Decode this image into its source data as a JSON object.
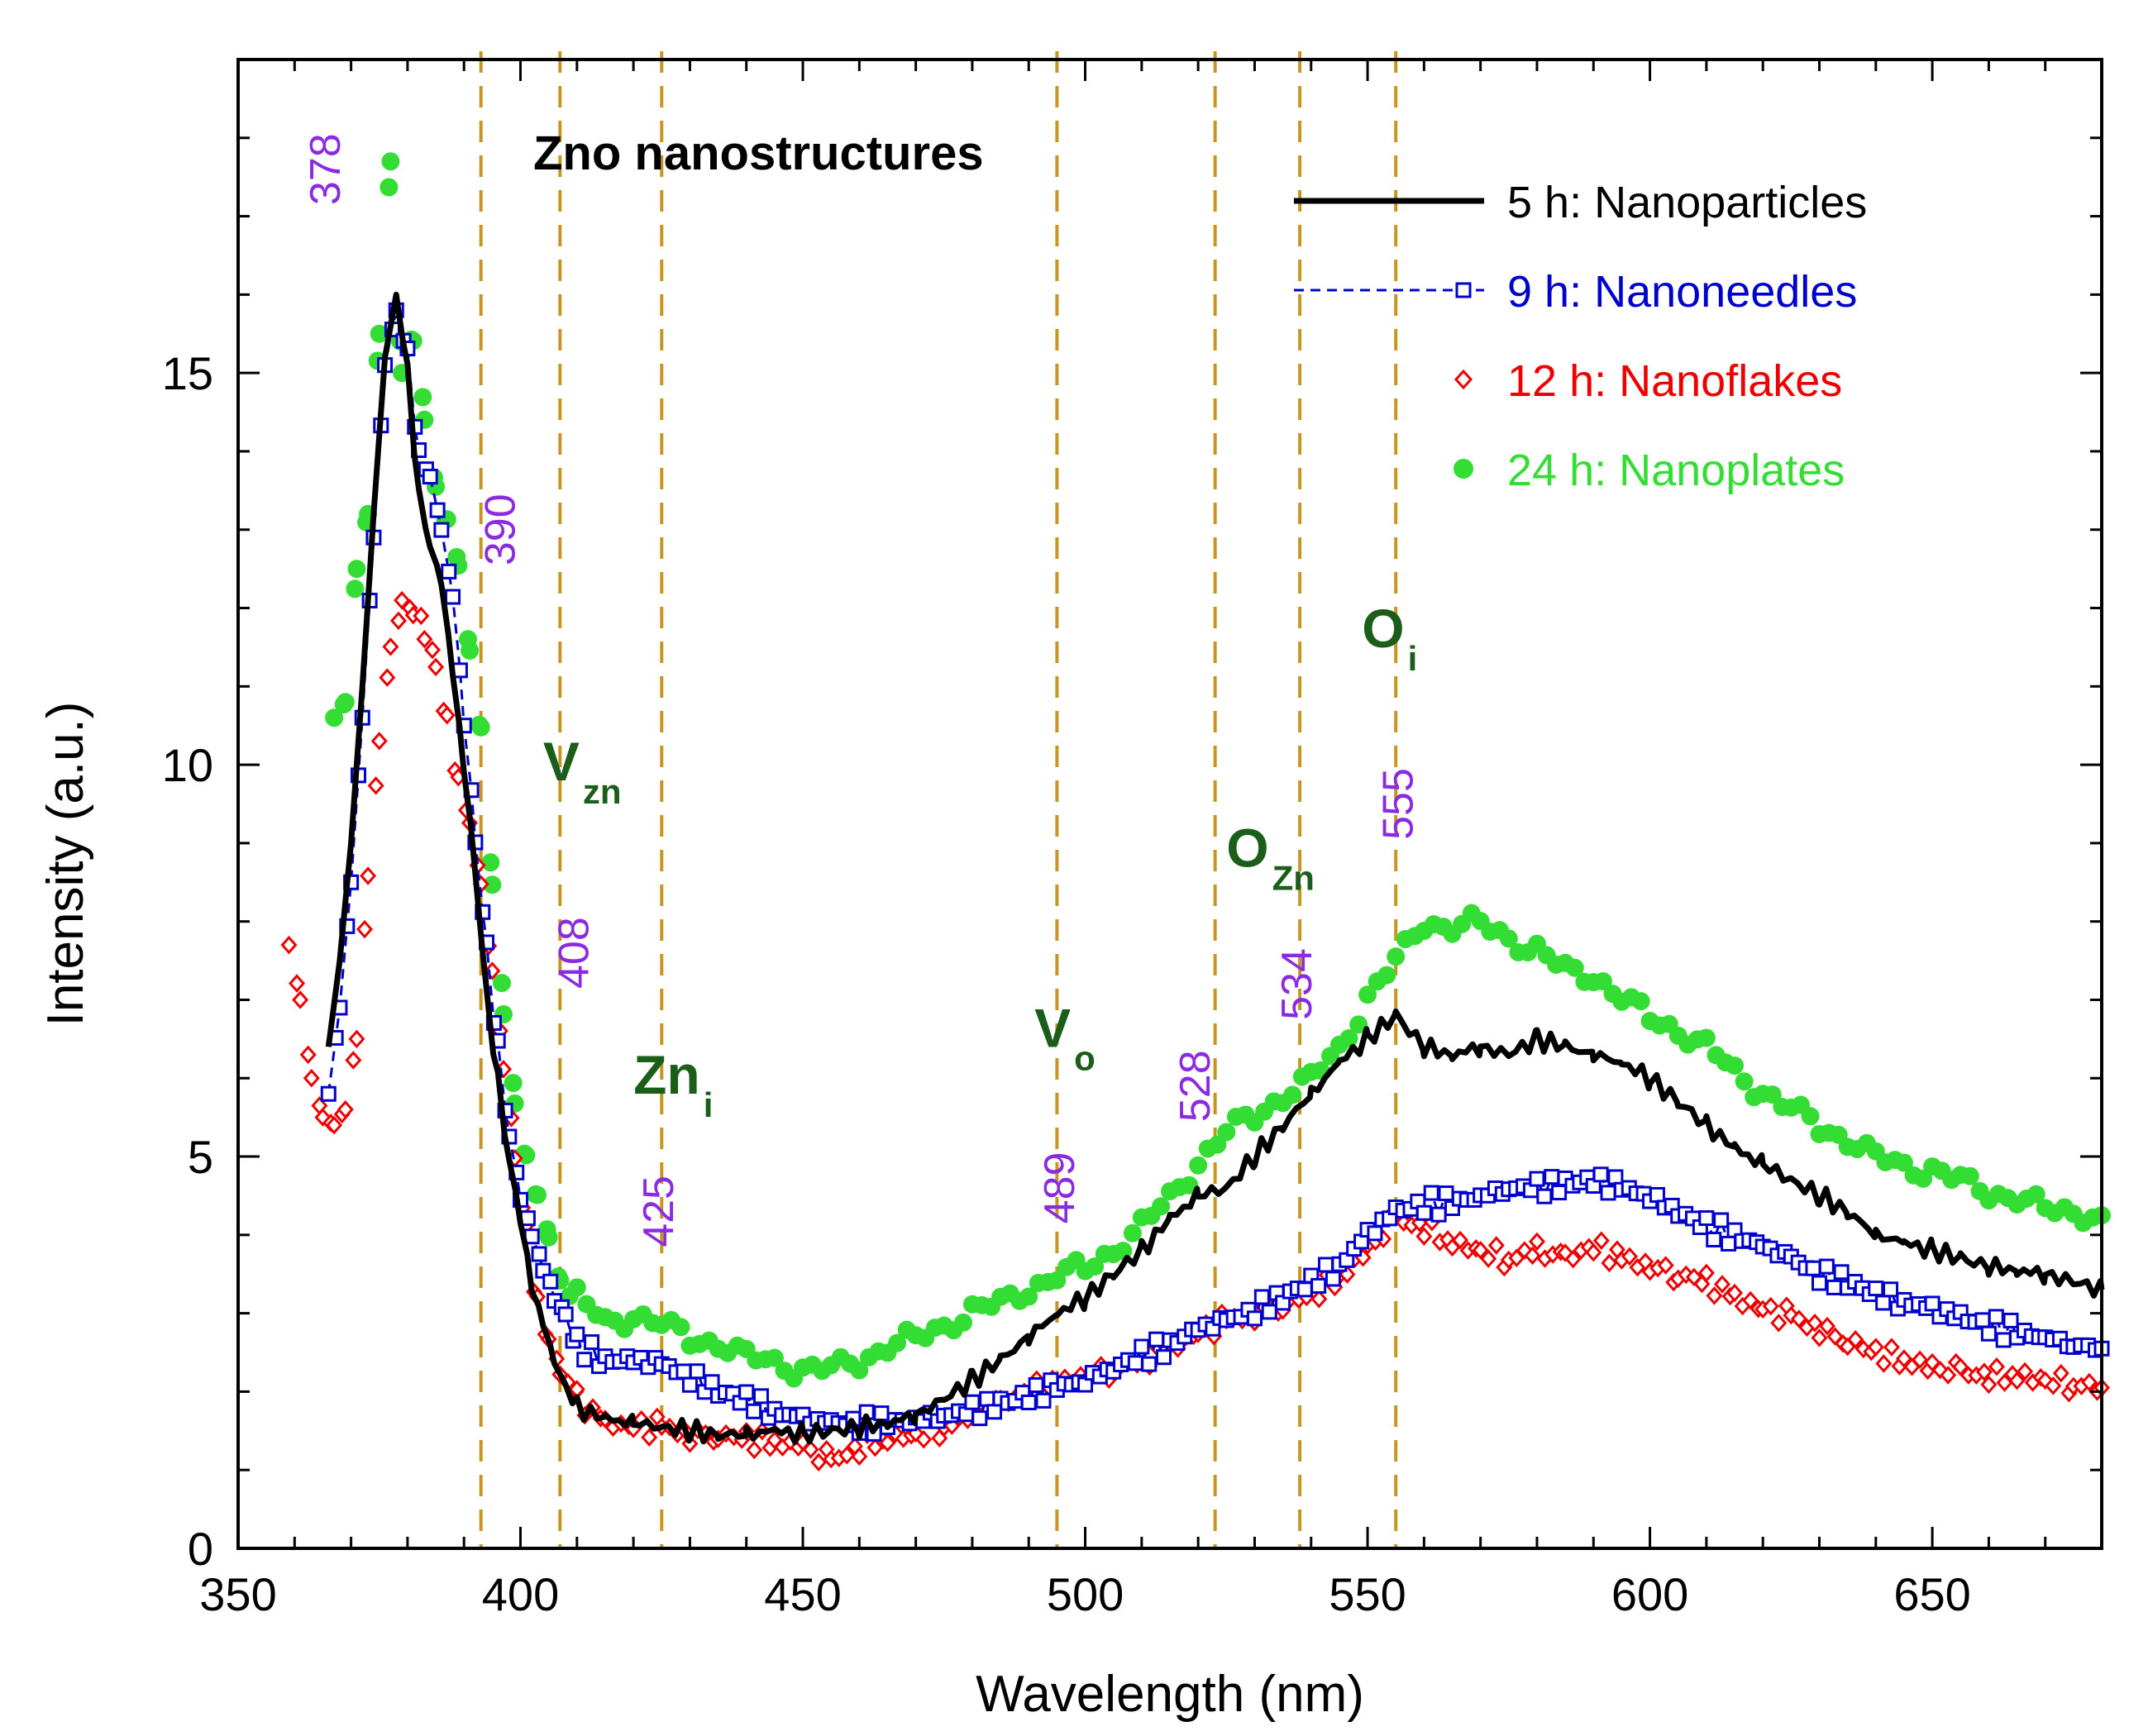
{
  "chart_data": {
    "type": "line",
    "title": "Zno nanostructures",
    "xlabel": "Wavelength (nm)",
    "ylabel": "Intensity (a.u.)",
    "xlim": [
      350,
      680
    ],
    "ylim": [
      0,
      19
    ],
    "xticks": [
      350,
      400,
      450,
      500,
      550,
      600,
      650
    ],
    "xtick_labels": [
      "350",
      "400",
      "450",
      "500",
      "550",
      "600",
      "650"
    ],
    "yticks": [
      0,
      5,
      10,
      15
    ],
    "ytick_labels": [
      "0",
      "5",
      "10",
      "15"
    ],
    "legend_position": "top-right",
    "series": [
      {
        "name": "5 h: Nanoparticles",
        "color": "#000000",
        "style": "line",
        "x": [
          366,
          368,
          370,
          372,
          374,
          376,
          378,
          380,
          382,
          384,
          386,
          388,
          390,
          392,
          394,
          396,
          398,
          400,
          402,
          404,
          406,
          408,
          410,
          415,
          420,
          425,
          430,
          435,
          440,
          445,
          450,
          455,
          460,
          465,
          470,
          475,
          480,
          485,
          490,
          495,
          500,
          505,
          510,
          515,
          520,
          525,
          530,
          535,
          540,
          545,
          550,
          555,
          560,
          565,
          570,
          575,
          580,
          585,
          590,
          595,
          600,
          605,
          610,
          615,
          620,
          625,
          630,
          635,
          640,
          645,
          650,
          655,
          660,
          665,
          670,
          675,
          680
        ],
        "y": [
          6.4,
          7.5,
          9.0,
          11.0,
          13.2,
          15.2,
          16.0,
          15.0,
          13.5,
          12.8,
          12.3,
          11.2,
          10.0,
          8.6,
          7.0,
          6.0,
          5.0,
          4.2,
          3.3,
          2.9,
          2.4,
          2.0,
          1.8,
          1.65,
          1.6,
          1.55,
          1.5,
          1.45,
          1.45,
          1.5,
          1.45,
          1.5,
          1.55,
          1.6,
          1.7,
          1.9,
          2.15,
          2.4,
          2.7,
          3.0,
          3.2,
          3.5,
          3.8,
          4.2,
          4.5,
          4.6,
          5.0,
          5.4,
          5.8,
          6.2,
          6.5,
          6.8,
          6.4,
          6.3,
          6.4,
          6.3,
          6.5,
          6.4,
          6.3,
          6.2,
          6.0,
          5.7,
          5.4,
          5.1,
          4.9,
          4.7,
          4.5,
          4.3,
          4.0,
          3.9,
          3.8,
          3.7,
          3.6,
          3.55,
          3.5,
          3.4,
          3.3
        ]
      },
      {
        "name": "9 h: Nanoneedles",
        "color": "#0000cc",
        "style": "dashed-square",
        "x": [
          366,
          368,
          370,
          372,
          374,
          376,
          378,
          380,
          382,
          384,
          386,
          388,
          390,
          392,
          394,
          396,
          398,
          400,
          402,
          404,
          406,
          408,
          410,
          415,
          420,
          425,
          430,
          435,
          440,
          445,
          450,
          455,
          460,
          465,
          470,
          475,
          480,
          485,
          490,
          495,
          500,
          505,
          510,
          515,
          520,
          525,
          530,
          535,
          540,
          545,
          550,
          555,
          560,
          565,
          570,
          575,
          580,
          585,
          590,
          595,
          600,
          605,
          610,
          615,
          620,
          625,
          630,
          635,
          640,
          645,
          650,
          655,
          660,
          665,
          670,
          675,
          680
        ],
        "y": [
          5.8,
          6.9,
          8.5,
          10.6,
          12.9,
          15.1,
          15.8,
          15.2,
          14.0,
          13.7,
          13.0,
          12.2,
          10.6,
          9.0,
          7.6,
          6.4,
          5.3,
          4.5,
          4.0,
          3.6,
          3.2,
          2.9,
          2.6,
          2.4,
          2.4,
          2.35,
          2.2,
          2.0,
          1.9,
          1.75,
          1.65,
          1.6,
          1.6,
          1.6,
          1.65,
          1.7,
          1.75,
          1.85,
          1.95,
          2.05,
          2.15,
          2.3,
          2.45,
          2.6,
          2.8,
          2.9,
          3.05,
          3.2,
          3.4,
          3.6,
          4.0,
          4.3,
          4.4,
          4.4,
          4.5,
          4.6,
          4.6,
          4.65,
          4.7,
          4.6,
          4.5,
          4.3,
          4.1,
          4.0,
          3.85,
          3.7,
          3.5,
          3.4,
          3.25,
          3.15,
          3.05,
          2.95,
          2.85,
          2.75,
          2.7,
          2.6,
          2.55
        ]
      },
      {
        "name": "12 h: Nanoflakes",
        "color": "#ee0000",
        "style": "diamond",
        "x": [
          359,
          361,
          363,
          365,
          367,
          369,
          371,
          373,
          375,
          377,
          379,
          381,
          383,
          385,
          387,
          389,
          391,
          393,
          395,
          397,
          399,
          401,
          403,
          405,
          407,
          410,
          415,
          420,
          425,
          430,
          435,
          440,
          445,
          450,
          455,
          460,
          465,
          470,
          475,
          480,
          485,
          490,
          495,
          500,
          505,
          510,
          515,
          520,
          525,
          530,
          535,
          540,
          545,
          550,
          555,
          560,
          565,
          570,
          575,
          580,
          585,
          590,
          595,
          600,
          605,
          610,
          615,
          620,
          625,
          630,
          635,
          640,
          645,
          650,
          655,
          660,
          665,
          670,
          675,
          680
        ],
        "y": [
          7.7,
          7.0,
          6.0,
          5.5,
          5.4,
          5.6,
          6.5,
          8.5,
          10.3,
          11.5,
          12.1,
          12.0,
          11.7,
          11.2,
          10.5,
          9.8,
          9.3,
          8.5,
          7.4,
          6.2,
          5.0,
          4.0,
          3.1,
          2.7,
          2.3,
          1.9,
          1.6,
          1.55,
          1.55,
          1.45,
          1.45,
          1.4,
          1.35,
          1.3,
          1.1,
          1.3,
          1.4,
          1.45,
          1.55,
          1.7,
          1.85,
          2.0,
          2.1,
          2.2,
          2.3,
          2.4,
          2.55,
          2.75,
          2.9,
          3.0,
          3.1,
          3.25,
          3.45,
          3.8,
          4.2,
          4.1,
          3.9,
          3.8,
          3.7,
          3.8,
          3.7,
          3.85,
          3.7,
          3.6,
          3.5,
          3.4,
          3.2,
          3.05,
          2.95,
          2.8,
          2.65,
          2.5,
          2.4,
          2.3,
          2.25,
          2.2,
          2.2,
          2.15,
          2.1,
          2.05
        ]
      },
      {
        "name": "24 h: Nanoplates",
        "color": "#33dd33",
        "style": "dot",
        "x": [
          367,
          369,
          371,
          373,
          375,
          377,
          379,
          381,
          383,
          385,
          387,
          389,
          391,
          393,
          395,
          397,
          399,
          401,
          403,
          405,
          407,
          410,
          415,
          420,
          425,
          430,
          435,
          440,
          445,
          450,
          455,
          460,
          465,
          470,
          475,
          480,
          485,
          490,
          495,
          500,
          505,
          510,
          515,
          520,
          525,
          530,
          535,
          540,
          545,
          550,
          555,
          560,
          565,
          570,
          575,
          580,
          585,
          590,
          595,
          600,
          605,
          610,
          615,
          620,
          625,
          630,
          635,
          640,
          645,
          650,
          655,
          660,
          665,
          670,
          675,
          680
        ],
        "y": [
          10.6,
          10.8,
          12.5,
          13.2,
          15.5,
          17.7,
          15.0,
          15.5,
          14.5,
          13.5,
          13.0,
          12.5,
          11.5,
          10.5,
          8.5,
          6.9,
          5.7,
          4.9,
          4.4,
          4.0,
          3.5,
          3.2,
          2.9,
          2.95,
          2.85,
          2.7,
          2.6,
          2.45,
          2.4,
          2.25,
          2.3,
          2.4,
          2.55,
          2.7,
          2.85,
          3.0,
          3.15,
          3.3,
          3.45,
          3.6,
          3.8,
          4.1,
          4.5,
          4.9,
          5.3,
          5.55,
          5.75,
          6.0,
          6.4,
          7.0,
          7.5,
          8.0,
          7.9,
          8.0,
          7.8,
          7.6,
          7.4,
          7.3,
          7.0,
          6.8,
          6.6,
          6.4,
          6.1,
          5.8,
          5.6,
          5.4,
          5.2,
          5.0,
          4.9,
          4.8,
          4.7,
          4.55,
          4.45,
          4.35,
          4.3,
          4.25
        ]
      }
    ],
    "reference_lines": [
      393,
      407,
      425,
      495,
      523,
      538,
      555
    ],
    "peak_labels": [
      {
        "text": "378",
        "x": 368,
        "y": 17.6
      },
      {
        "text": "390",
        "x": 399,
        "y": 13.0
      },
      {
        "text": "408",
        "x": 412,
        "y": 7.6
      },
      {
        "text": "425",
        "x": 427,
        "y": 4.3
      },
      {
        "text": "489",
        "x": 498,
        "y": 4.6
      },
      {
        "text": "528",
        "x": 522,
        "y": 5.9
      },
      {
        "text": "534",
        "x": 540,
        "y": 7.2
      },
      {
        "text": "555",
        "x": 558,
        "y": 9.5
      }
    ],
    "defect_labels": [
      {
        "main": "V",
        "sub": "zn",
        "x": 404,
        "y": 9.8
      },
      {
        "main": "Zn",
        "sub": "i",
        "x": 420,
        "y": 5.8
      },
      {
        "main": "V",
        "sub": "o",
        "x": 491,
        "y": 6.4
      },
      {
        "main": "O",
        "sub": "Zn",
        "x": 525,
        "y": 8.7
      },
      {
        "main": "O",
        "sub": "i",
        "x": 549,
        "y": 11.5
      }
    ]
  }
}
